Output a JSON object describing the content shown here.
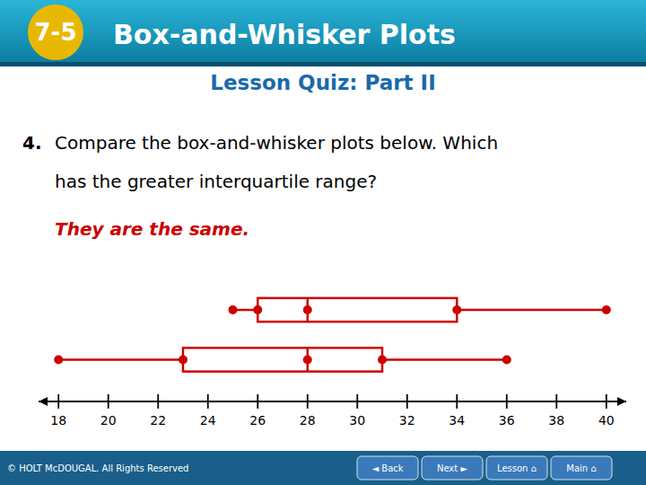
{
  "chart_data": {
    "type": "box",
    "orientation": "horizontal",
    "title": "Box-and-Whisker Plots",
    "subtitle": "Lesson Quiz: Part II",
    "annotations": [
      {
        "text": "7-5"
      },
      {
        "text": "4."
      },
      {
        "text": "Compare the box-and-whisker plots below. Which"
      },
      {
        "text": "has the greater interquartile range?"
      },
      {
        "text": "They are the same.",
        "color": "#cc0000"
      },
      {
        "text": "© HOLT McDOUGAL. All Rights Reserved"
      },
      {
        "text": "◄ Back"
      },
      {
        "text": "Next ►"
      },
      {
        "text": "Lesson ⌂"
      },
      {
        "text": "Main ⌂"
      }
    ],
    "series": [
      {
        "color": "#cc0000",
        "min": 25,
        "q1": 26,
        "median": 28,
        "q3": 34,
        "max": 40
      },
      {
        "color": "#cc0000",
        "min": 18,
        "q1": 23,
        "median": 28,
        "q3": 31,
        "max": 36
      }
    ],
    "xlim": [
      17.2,
      40.8
    ],
    "xticks": [
      18,
      20,
      22,
      24,
      26,
      28,
      30,
      32,
      34,
      36,
      38,
      40
    ],
    "grid": false
  }
}
